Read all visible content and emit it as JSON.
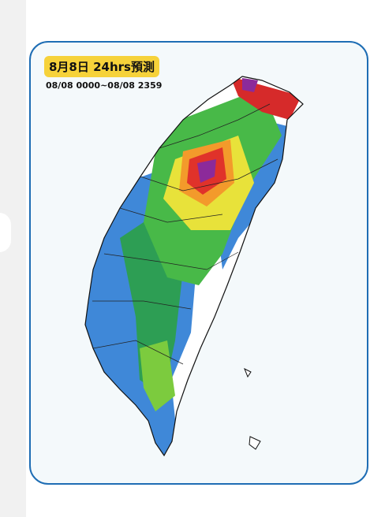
{
  "header": {
    "title": "8月8日 24hrs預測",
    "subtitle": "08/08 0000~08/08 2359"
  }
}
